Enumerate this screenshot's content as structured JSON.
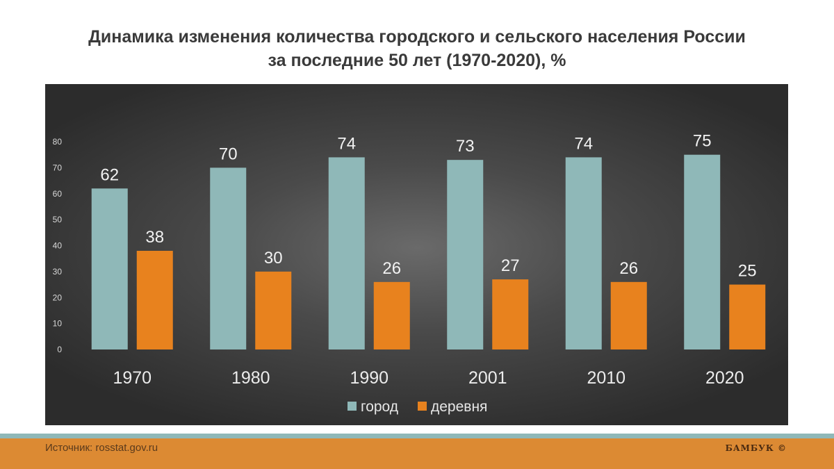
{
  "title": {
    "line1": "Динамика изменения количества городского и сельского населения России",
    "line2": "за последние 50 лет (1970-2020), %"
  },
  "colors": {
    "city": "#8fb8b8",
    "village": "#e8821e",
    "footer": "#dc8a33",
    "accent_line": "#8fb8b8"
  },
  "chart_data": {
    "type": "bar",
    "title": "Динамика изменения количества городского и сельского населения России за последние 50 лет (1970-2020), %",
    "categories": [
      "1970",
      "1980",
      "1990",
      "2001",
      "2010",
      "2020"
    ],
    "series": [
      {
        "name": "город",
        "values": [
          62,
          70,
          74,
          73,
          74,
          75
        ]
      },
      {
        "name": "деревня",
        "values": [
          38,
          30,
          26,
          27,
          26,
          25
        ]
      }
    ],
    "ylim": [
      0,
      80
    ],
    "yticks": [
      0,
      10,
      20,
      30,
      40,
      50,
      60,
      70,
      80
    ],
    "grid": false,
    "legend": "bottom"
  },
  "footer": {
    "source": "Источник: rosstat.gov.ru",
    "brand": "БАМБУК ©"
  }
}
